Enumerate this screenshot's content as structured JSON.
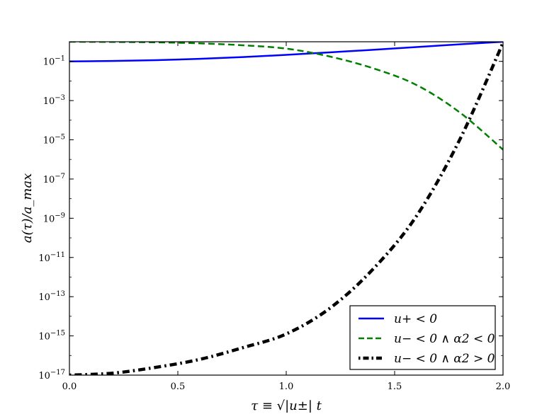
{
  "chart_data": {
    "type": "line",
    "xlabel": "τ ≡ √|u±| t",
    "ylabel": "a(τ)/a_max",
    "yscale": "log",
    "xlim": [
      0.0,
      2.0
    ],
    "ylim_exponent": [
      -17,
      0
    ],
    "x_ticks": [
      "0.0",
      "0.5",
      "1.0",
      "1.5",
      "2.0"
    ],
    "y_ticks": [
      {
        "base": "10",
        "exp": "−1",
        "value": -1
      },
      {
        "base": "10",
        "exp": "−3",
        "value": -3
      },
      {
        "base": "10",
        "exp": "−5",
        "value": -5
      },
      {
        "base": "10",
        "exp": "−7",
        "value": -7
      },
      {
        "base": "10",
        "exp": "−9",
        "value": -9
      },
      {
        "base": "10",
        "exp": "−11",
        "value": -11
      },
      {
        "base": "10",
        "exp": "−13",
        "value": -13
      },
      {
        "base": "10",
        "exp": "−15",
        "value": -15
      },
      {
        "base": "10",
        "exp": "−17",
        "value": -17
      }
    ],
    "legend_position": "lower-right",
    "series": [
      {
        "name": "u+ < 0",
        "color": "#0000ff",
        "style": "solid",
        "x": [
          0.0,
          0.2,
          0.4,
          0.6,
          0.8,
          1.0,
          1.2,
          1.4,
          1.6,
          1.8,
          2.0
        ],
        "log10_y": [
          -1.0,
          -0.98,
          -0.94,
          -0.87,
          -0.78,
          -0.67,
          -0.54,
          -0.41,
          -0.27,
          -0.13,
          0.0
        ]
      },
      {
        "name": "u− < 0 ∧ α2 < 0",
        "color": "#008000",
        "style": "dashed",
        "x": [
          0.0,
          0.2,
          0.4,
          0.6,
          0.8,
          1.0,
          1.2,
          1.4,
          1.6,
          1.8,
          2.0
        ],
        "log10_y": [
          0.0,
          -0.01,
          -0.03,
          -0.08,
          -0.18,
          -0.35,
          -0.75,
          -1.35,
          -2.2,
          -3.6,
          -5.5
        ]
      },
      {
        "name": "u− < 0 ∧ α2 > 0",
        "color": "#000000",
        "style": "dash-dot",
        "x": [
          0.0,
          0.2,
          0.4,
          0.6,
          0.8,
          1.0,
          1.2,
          1.4,
          1.6,
          1.8,
          2.0
        ],
        "log10_y": [
          -17.0,
          -16.9,
          -16.6,
          -16.2,
          -15.6,
          -14.9,
          -13.6,
          -11.6,
          -8.9,
          -5.0,
          -0.05
        ]
      }
    ]
  }
}
